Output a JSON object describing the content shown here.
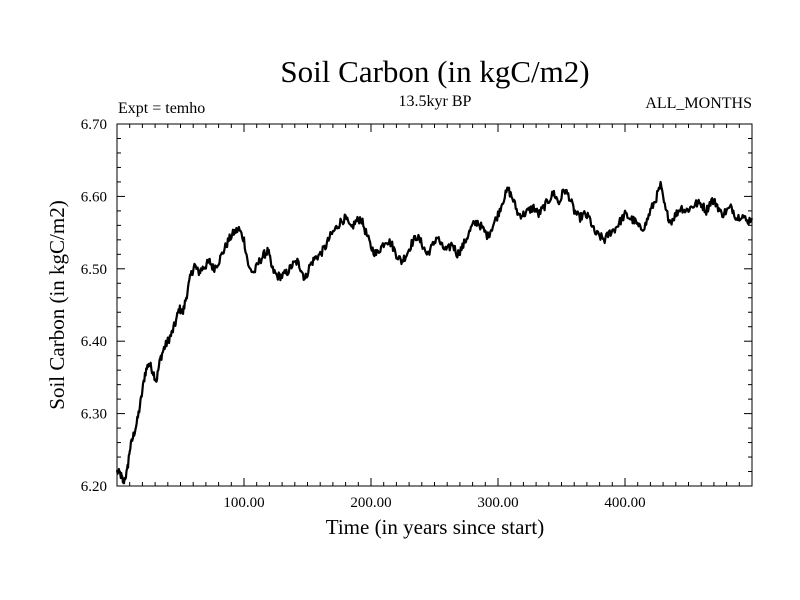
{
  "chart_data": {
    "type": "line",
    "title": "Soil Carbon (in kgC/m2)",
    "subtitle": "13.5kyr BP",
    "experiment_label": "Expt = temho",
    "period_label": "ALL_MONTHS",
    "xlabel": "Time (in years since start)",
    "ylabel": "Soil Carbon (in kgC/m2)",
    "xlim": [
      0,
      500
    ],
    "ylim": [
      6.2,
      6.7
    ],
    "x_tick_values": [
      100,
      200,
      300,
      400
    ],
    "x_tick_labels": [
      "100.00",
      "200.00",
      "300.00",
      "400.00"
    ],
    "y_tick_values": [
      6.2,
      6.3,
      6.4,
      6.5,
      6.6,
      6.7
    ],
    "y_tick_labels": [
      "6.20",
      "6.30",
      "6.40",
      "6.50",
      "6.60",
      "6.70"
    ],
    "grid": false,
    "line_color": "#000000",
    "series": [
      {
        "name": "Soil Carbon",
        "points": [
          [
            0,
            6.22
          ],
          [
            3,
            6.215
          ],
          [
            5,
            6.205
          ],
          [
            8,
            6.22
          ],
          [
            10,
            6.25
          ],
          [
            13,
            6.27
          ],
          [
            16,
            6.29
          ],
          [
            19,
            6.32
          ],
          [
            22,
            6.355
          ],
          [
            25,
            6.37
          ],
          [
            28,
            6.36
          ],
          [
            31,
            6.345
          ],
          [
            34,
            6.375
          ],
          [
            37,
            6.39
          ],
          [
            40,
            6.4
          ],
          [
            43,
            6.41
          ],
          [
            46,
            6.425
          ],
          [
            49,
            6.445
          ],
          [
            52,
            6.44
          ],
          [
            55,
            6.465
          ],
          [
            58,
            6.49
          ],
          [
            61,
            6.505
          ],
          [
            64,
            6.495
          ],
          [
            67,
            6.5
          ],
          [
            70,
            6.505
          ],
          [
            73,
            6.51
          ],
          [
            76,
            6.5
          ],
          [
            80,
            6.51
          ],
          [
            84,
            6.525
          ],
          [
            88,
            6.54
          ],
          [
            92,
            6.55
          ],
          [
            96,
            6.555
          ],
          [
            100,
            6.54
          ],
          [
            104,
            6.5
          ],
          [
            108,
            6.495
          ],
          [
            112,
            6.51
          ],
          [
            116,
            6.52
          ],
          [
            119,
            6.525
          ],
          [
            122,
            6.5
          ],
          [
            126,
            6.49
          ],
          [
            130,
            6.49
          ],
          [
            134,
            6.495
          ],
          [
            138,
            6.505
          ],
          [
            142,
            6.51
          ],
          [
            145,
            6.5
          ],
          [
            148,
            6.485
          ],
          [
            152,
            6.505
          ],
          [
            156,
            6.515
          ],
          [
            160,
            6.52
          ],
          [
            164,
            6.53
          ],
          [
            168,
            6.545
          ],
          [
            172,
            6.555
          ],
          [
            176,
            6.565
          ],
          [
            180,
            6.57
          ],
          [
            184,
            6.555
          ],
          [
            188,
            6.565
          ],
          [
            192,
            6.57
          ],
          [
            196,
            6.55
          ],
          [
            200,
            6.53
          ],
          [
            204,
            6.52
          ],
          [
            208,
            6.53
          ],
          [
            212,
            6.54
          ],
          [
            216,
            6.535
          ],
          [
            220,
            6.52
          ],
          [
            224,
            6.51
          ],
          [
            228,
            6.52
          ],
          [
            232,
            6.535
          ],
          [
            236,
            6.545
          ],
          [
            240,
            6.535
          ],
          [
            244,
            6.52
          ],
          [
            248,
            6.53
          ],
          [
            252,
            6.545
          ],
          [
            256,
            6.53
          ],
          [
            260,
            6.525
          ],
          [
            264,
            6.535
          ],
          [
            268,
            6.52
          ],
          [
            272,
            6.53
          ],
          [
            276,
            6.545
          ],
          [
            280,
            6.56
          ],
          [
            284,
            6.565
          ],
          [
            288,
            6.555
          ],
          [
            292,
            6.545
          ],
          [
            296,
            6.56
          ],
          [
            300,
            6.575
          ],
          [
            304,
            6.595
          ],
          [
            308,
            6.61
          ],
          [
            312,
            6.595
          ],
          [
            316,
            6.575
          ],
          [
            320,
            6.575
          ],
          [
            324,
            6.58
          ],
          [
            328,
            6.585
          ],
          [
            332,
            6.575
          ],
          [
            336,
            6.585
          ],
          [
            340,
            6.595
          ],
          [
            344,
            6.605
          ],
          [
            348,
            6.59
          ],
          [
            352,
            6.61
          ],
          [
            356,
            6.6
          ],
          [
            360,
            6.58
          ],
          [
            364,
            6.57
          ],
          [
            368,
            6.575
          ],
          [
            372,
            6.57
          ],
          [
            376,
            6.55
          ],
          [
            380,
            6.545
          ],
          [
            384,
            6.54
          ],
          [
            388,
            6.55
          ],
          [
            392,
            6.555
          ],
          [
            396,
            6.565
          ],
          [
            400,
            6.575
          ],
          [
            404,
            6.57
          ],
          [
            408,
            6.565
          ],
          [
            412,
            6.555
          ],
          [
            416,
            6.56
          ],
          [
            420,
            6.58
          ],
          [
            424,
            6.595
          ],
          [
            428,
            6.615
          ],
          [
            432,
            6.58
          ],
          [
            436,
            6.565
          ],
          [
            440,
            6.575
          ],
          [
            444,
            6.585
          ],
          [
            448,
            6.58
          ],
          [
            452,
            6.585
          ],
          [
            456,
            6.59
          ],
          [
            460,
            6.59
          ],
          [
            464,
            6.58
          ],
          [
            468,
            6.595
          ],
          [
            472,
            6.59
          ],
          [
            476,
            6.575
          ],
          [
            480,
            6.58
          ],
          [
            484,
            6.585
          ],
          [
            488,
            6.57
          ],
          [
            492,
            6.575
          ],
          [
            496,
            6.565
          ],
          [
            500,
            6.57
          ]
        ]
      }
    ]
  }
}
